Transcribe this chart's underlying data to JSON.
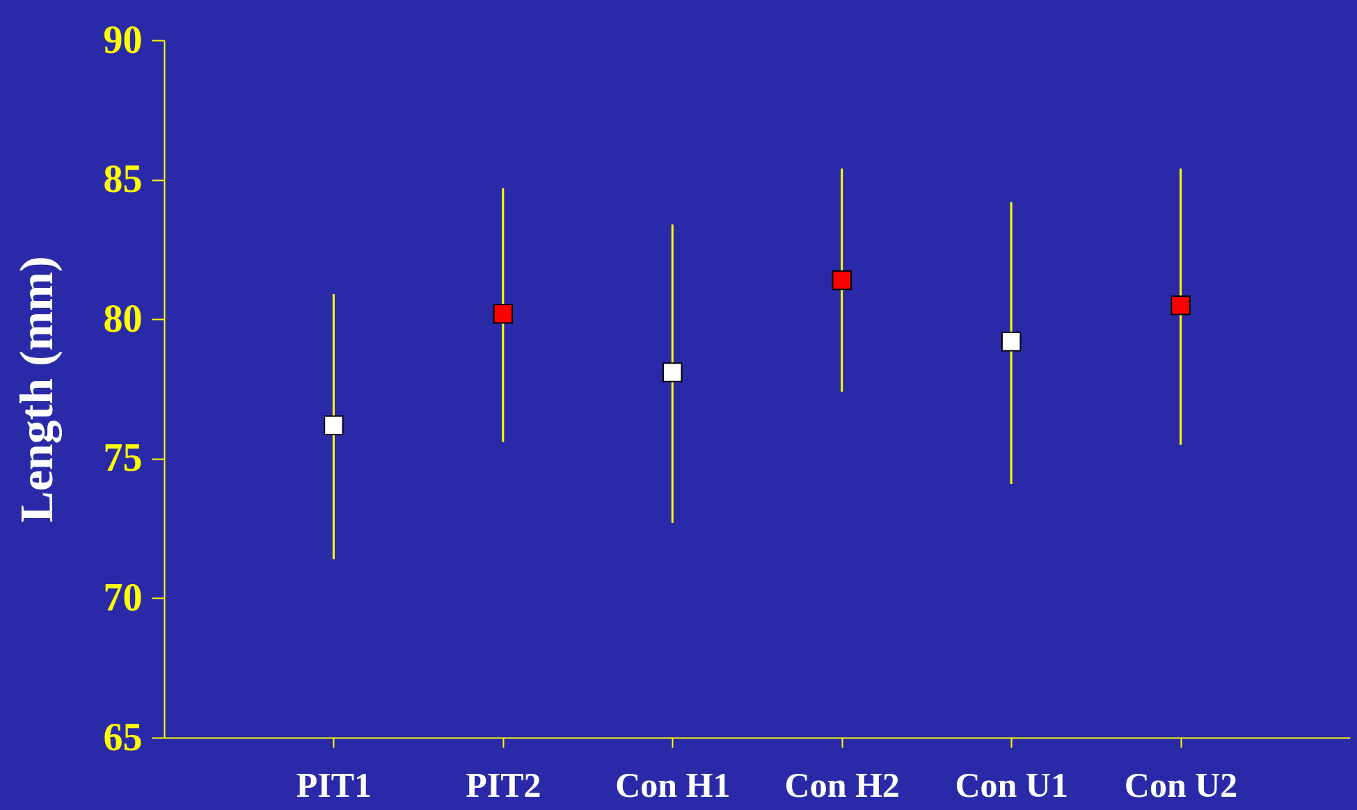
{
  "chart_data": {
    "type": "scatter",
    "ylabel": "Length (mm)",
    "categories": [
      "PIT1",
      "PIT2",
      "Con H1",
      "Con H2",
      "Con U1",
      "Con U2"
    ],
    "values": [
      76.2,
      80.2,
      78.1,
      81.4,
      79.2,
      80.5
    ],
    "colors": [
      "#ffffff",
      "#ff0000",
      "#ffffff",
      "#ff0000",
      "#ffffff",
      "#ff0000"
    ],
    "errors": [
      [
        71.4,
        80.9
      ],
      [
        75.6,
        84.7
      ],
      [
        72.7,
        83.4
      ],
      [
        77.4,
        85.4
      ],
      [
        74.1,
        84.2
      ],
      [
        75.5,
        85.4
      ]
    ],
    "ylim": [
      65,
      90
    ],
    "yticks": [
      65,
      70,
      75,
      80,
      85,
      90
    ],
    "grid": false,
    "marker": "square"
  }
}
